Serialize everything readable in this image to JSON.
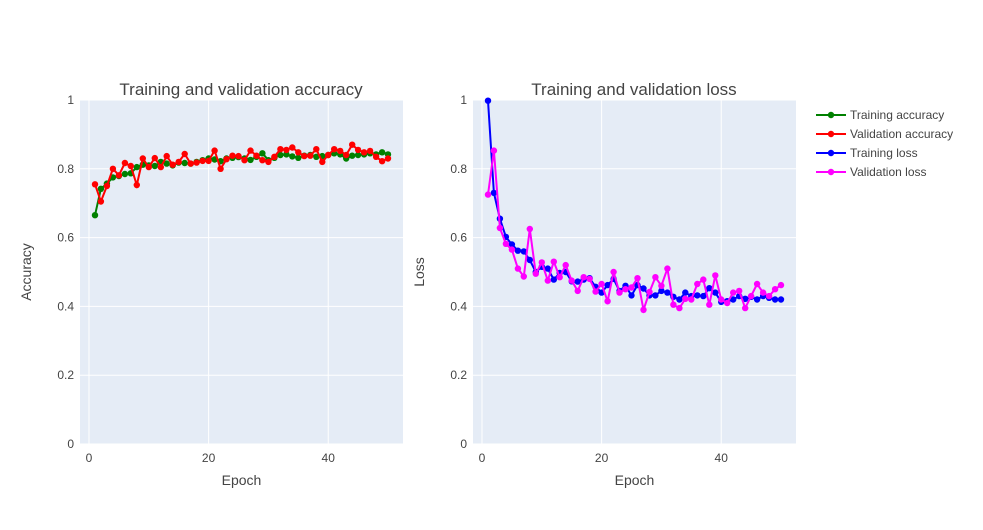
{
  "colors": {
    "plot_bg": "#e5ecf6",
    "grid": "#ffffff",
    "text": "#444444",
    "training_accuracy": "#008000",
    "validation_accuracy": "#ff0000",
    "training_loss": "#0000ff",
    "validation_loss": "#ff00ff"
  },
  "legend": {
    "placement": "top-right",
    "items": [
      "Training accuracy",
      "Validation accuracy",
      "Training loss",
      "Validation loss"
    ]
  },
  "chart_data": [
    {
      "type": "line",
      "title": "Training and validation accuracy",
      "xlabel": "Epoch",
      "ylabel": "Accuracy",
      "xlim": [
        -1.5,
        52.5
      ],
      "ylim": [
        0,
        1
      ],
      "xticks": [
        0,
        20,
        40
      ],
      "yticks": [
        0,
        0.2,
        0.4,
        0.6,
        0.8,
        1
      ],
      "ytick_labels": [
        "0",
        "0.2",
        "0.4",
        "0.6",
        "0.8",
        "1"
      ],
      "grid": true,
      "x": [
        1,
        2,
        3,
        4,
        5,
        6,
        7,
        8,
        9,
        10,
        11,
        12,
        13,
        14,
        15,
        16,
        17,
        18,
        19,
        20,
        21,
        22,
        23,
        24,
        25,
        26,
        27,
        28,
        29,
        30,
        31,
        32,
        33,
        34,
        35,
        36,
        37,
        38,
        39,
        40,
        41,
        42,
        43,
        44,
        45,
        46,
        47,
        48,
        49,
        50
      ],
      "series": [
        {
          "name": "Training accuracy",
          "color": "#008000",
          "values": [
            0.665,
            0.742,
            0.757,
            0.775,
            0.779,
            0.785,
            0.787,
            0.805,
            0.812,
            0.81,
            0.808,
            0.82,
            0.815,
            0.81,
            0.818,
            0.817,
            0.815,
            0.82,
            0.825,
            0.83,
            0.827,
            0.822,
            0.83,
            0.832,
            0.834,
            0.83,
            0.826,
            0.835,
            0.845,
            0.825,
            0.832,
            0.84,
            0.842,
            0.836,
            0.832,
            0.838,
            0.84,
            0.835,
            0.837,
            0.84,
            0.845,
            0.842,
            0.83,
            0.838,
            0.84,
            0.842,
            0.845,
            0.842,
            0.848,
            0.842
          ]
        },
        {
          "name": "Validation accuracy",
          "color": "#ff0000",
          "values": [
            0.755,
            0.705,
            0.75,
            0.8,
            0.781,
            0.817,
            0.808,
            0.753,
            0.83,
            0.805,
            0.831,
            0.805,
            0.837,
            0.812,
            0.82,
            0.843,
            0.815,
            0.818,
            0.823,
            0.823,
            0.853,
            0.8,
            0.828,
            0.838,
            0.837,
            0.825,
            0.853,
            0.838,
            0.825,
            0.82,
            0.835,
            0.857,
            0.855,
            0.862,
            0.848,
            0.837,
            0.838,
            0.857,
            0.82,
            0.84,
            0.857,
            0.852,
            0.84,
            0.87,
            0.855,
            0.848,
            0.852,
            0.835,
            0.822,
            0.83
          ]
        }
      ]
    },
    {
      "type": "line",
      "title": "Training and validation loss",
      "xlabel": "Epoch",
      "ylabel": "Loss",
      "xlim": [
        -1.5,
        52.5
      ],
      "ylim": [
        0,
        1
      ],
      "xticks": [
        0,
        20,
        40
      ],
      "yticks": [
        0,
        0.2,
        0.4,
        0.6,
        0.8,
        1
      ],
      "ytick_labels": [
        "0",
        "0.2",
        "0.4",
        "0.6",
        "0.8",
        "1"
      ],
      "grid": true,
      "x": [
        1,
        2,
        3,
        4,
        5,
        6,
        7,
        8,
        9,
        10,
        11,
        12,
        13,
        14,
        15,
        16,
        17,
        18,
        19,
        20,
        21,
        22,
        23,
        24,
        25,
        26,
        27,
        28,
        29,
        30,
        31,
        32,
        33,
        34,
        35,
        36,
        37,
        38,
        39,
        40,
        41,
        42,
        43,
        44,
        45,
        46,
        47,
        48,
        49,
        50
      ],
      "series": [
        {
          "name": "Training loss",
          "color": "#0000ff",
          "values": [
            0.998,
            0.73,
            0.655,
            0.602,
            0.58,
            0.562,
            0.56,
            0.535,
            0.5,
            0.515,
            0.51,
            0.478,
            0.497,
            0.5,
            0.473,
            0.472,
            0.478,
            0.482,
            0.457,
            0.44,
            0.462,
            0.48,
            0.445,
            0.46,
            0.432,
            0.462,
            0.452,
            0.432,
            0.432,
            0.445,
            0.44,
            0.428,
            0.42,
            0.44,
            0.43,
            0.432,
            0.43,
            0.453,
            0.44,
            0.413,
            0.415,
            0.42,
            0.43,
            0.422,
            0.428,
            0.42,
            0.43,
            0.425,
            0.42,
            0.42
          ]
        },
        {
          "name": "Validation loss",
          "color": "#ff00ff",
          "values": [
            0.725,
            0.853,
            0.628,
            0.582,
            0.565,
            0.51,
            0.487,
            0.625,
            0.495,
            0.528,
            0.475,
            0.53,
            0.485,
            0.52,
            0.475,
            0.445,
            0.485,
            0.48,
            0.443,
            0.465,
            0.415,
            0.5,
            0.44,
            0.45,
            0.455,
            0.482,
            0.39,
            0.442,
            0.485,
            0.46,
            0.51,
            0.405,
            0.395,
            0.422,
            0.42,
            0.465,
            0.478,
            0.405,
            0.49,
            0.42,
            0.41,
            0.44,
            0.445,
            0.395,
            0.43,
            0.465,
            0.44,
            0.43,
            0.45,
            0.462
          ]
        }
      ]
    }
  ]
}
